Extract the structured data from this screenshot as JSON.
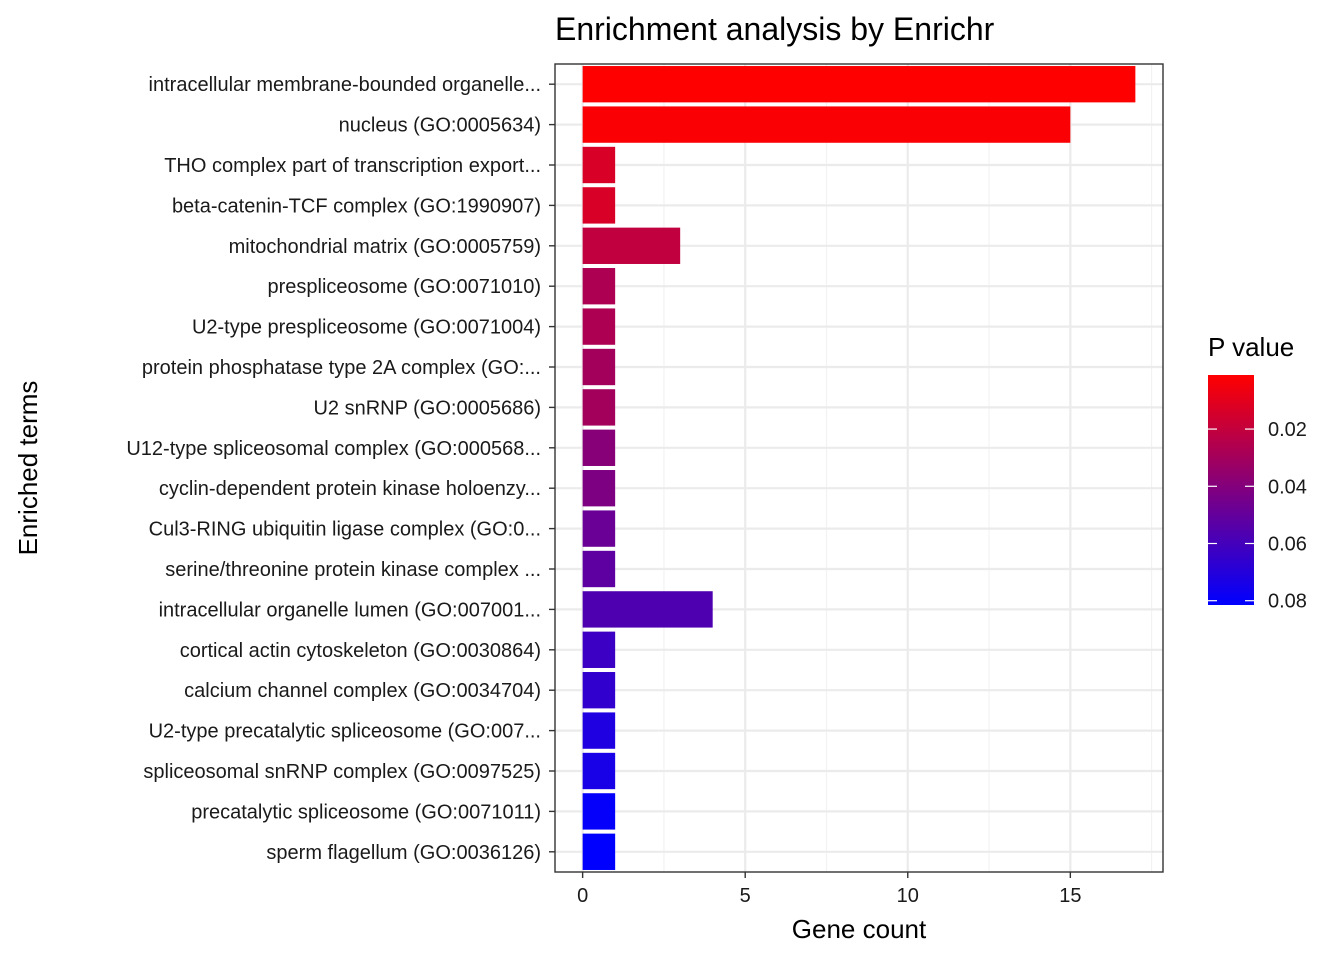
{
  "chart_data": {
    "type": "bar",
    "orientation": "horizontal",
    "title": "Enrichment analysis by Enrichr",
    "xlabel": "Gene count",
    "ylabel": "Enriched terms",
    "xlim": [
      -0.85,
      17.85
    ],
    "xticks": [
      0,
      5,
      10,
      15
    ],
    "grid": true,
    "categories": [
      "intracellular membrane-bounded organelle...",
      "nucleus (GO:0005634)",
      "THO complex part of transcription export...",
      "beta-catenin-TCF complex (GO:1990907)",
      "mitochondrial matrix (GO:0005759)",
      "prespliceosome (GO:0071010)",
      "U2-type prespliceosome (GO:0071004)",
      "protein phosphatase type 2A complex (GO:...",
      "U2 snRNP (GO:0005686)",
      "U12-type spliceosomal complex (GO:000568...",
      "cyclin-dependent protein kinase holoenzy...",
      "Cul3-RING ubiquitin ligase complex (GO:0...",
      "serine/threonine protein kinase complex ...",
      "intracellular organelle lumen (GO:007001...",
      "cortical actin cytoskeleton (GO:0030864)",
      "calcium channel complex (GO:0034704)",
      "U2-type precatalytic spliceosome (GO:007...",
      "spliceosomal snRNP complex (GO:0097525)",
      "precatalytic spliceosome (GO:0071011)",
      "sperm flagellum (GO:0036126)"
    ],
    "values": [
      17,
      15,
      1,
      1,
      3,
      1,
      1,
      1,
      1,
      1,
      1,
      1,
      1,
      4,
      1,
      1,
      1,
      1,
      1,
      1
    ],
    "p_values": [
      0.0011,
      0.0026,
      0.0135,
      0.0135,
      0.021,
      0.027,
      0.027,
      0.03,
      0.03,
      0.039,
      0.042,
      0.048,
      0.052,
      0.057,
      0.063,
      0.066,
      0.072,
      0.074,
      0.08,
      0.0815
    ],
    "legend": {
      "title": "P value",
      "position": "right",
      "ticks": [
        0.02,
        0.04,
        0.06,
        0.08
      ],
      "labels": [
        "0.02",
        "0.04",
        "0.06",
        "0.08"
      ],
      "range": [
        0.0011,
        0.0815
      ],
      "color_low": "#FF0000",
      "color_high": "#0000FF"
    }
  }
}
